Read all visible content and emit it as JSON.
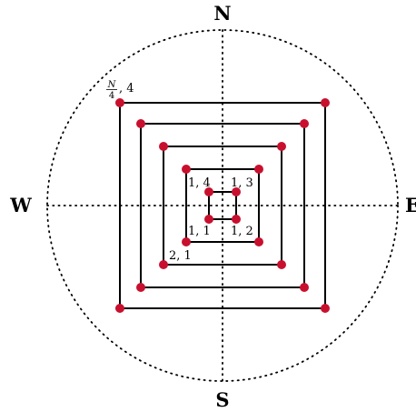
{
  "directions": {
    "north": "N",
    "south": "S",
    "west": "W",
    "east": "E"
  },
  "labels": {
    "p11": "1, 1",
    "p12": "1, 2",
    "p13": "1, 3",
    "p14": "1, 4",
    "p21": "2, 1",
    "outer_frac_num": "N",
    "outer_frac_den": "4",
    "outer_suffix": ", 4"
  },
  "colors": {
    "point": "#c8102e",
    "line": "#000000"
  }
}
